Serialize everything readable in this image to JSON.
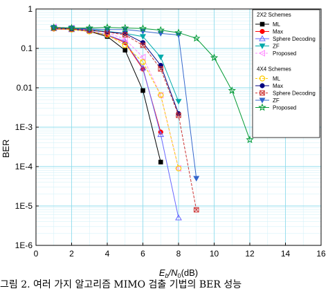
{
  "caption": "그림 2. 여러 가지 알고리즘 MIMO 검출 기법의 BER 성능",
  "chart_data": {
    "type": "line",
    "xlabel": "Eb/N0(dB)",
    "ylabel": "BER",
    "xlim": [
      0,
      16
    ],
    "ylim": [
      1e-06,
      1
    ],
    "yscale": "log",
    "grid": true,
    "legend_position": "top-right",
    "xticks": [
      "0",
      "2",
      "4",
      "6",
      "8",
      "10",
      "12",
      "14",
      "16"
    ],
    "yticks": [
      "1",
      "0.1",
      "0.01",
      "1E-3",
      "1E-4",
      "1E-5",
      "1E-6"
    ],
    "groups": [
      {
        "title": "2X2 Schemes",
        "series": [
          "ML",
          "Max",
          "Sphere Decoding",
          "ZF",
          "Proposed"
        ]
      },
      {
        "title": "4X4 Schemes",
        "series": [
          "ML",
          "Max",
          "Sphere Decoding",
          "ZF",
          "Proposed"
        ]
      }
    ],
    "series": [
      {
        "name": "ML",
        "group": "2X2 Schemes",
        "color": "#000000",
        "dash": "solid",
        "marker": "square",
        "x": [
          1,
          2,
          3,
          4,
          5,
          6,
          7
        ],
        "y": [
          0.32,
          0.3,
          0.27,
          0.2,
          0.09,
          0.0085,
          0.00013
        ]
      },
      {
        "name": "Max",
        "group": "2X2 Schemes",
        "color": "#ff0000",
        "dash": "solid",
        "marker": "circle",
        "x": [
          1,
          2,
          3,
          4,
          5,
          6,
          7
        ],
        "y": [
          0.31,
          0.3,
          0.27,
          0.22,
          0.14,
          0.03,
          0.00075
        ]
      },
      {
        "name": "Sphere Decoding",
        "group": "2X2 Schemes",
        "color": "#6666ff",
        "dash": "solid",
        "marker": "triangle-up",
        "x": [
          1,
          2,
          3,
          4,
          5,
          6,
          7,
          8
        ],
        "y": [
          0.32,
          0.3,
          0.28,
          0.22,
          0.15,
          0.032,
          0.00065,
          5e-06
        ]
      },
      {
        "name": "ZF",
        "group": "2X2 Schemes",
        "color": "#00aaaa",
        "dash": "solid",
        "marker": "triangle-down",
        "x": [
          1,
          2,
          3,
          4,
          5,
          6,
          7,
          8
        ],
        "y": [
          0.34,
          0.32,
          0.3,
          0.27,
          0.24,
          0.2,
          0.06,
          0.0045
        ]
      },
      {
        "name": "Proposed",
        "group": "2X2 Schemes",
        "color": "#ff88ff",
        "dash": "dash",
        "marker": "triangle-left",
        "x": [
          1,
          2,
          3,
          4,
          5,
          6,
          7,
          8
        ],
        "y": [
          0.35,
          0.33,
          0.3,
          0.25,
          0.17,
          0.06,
          0.0065,
          9e-05
        ]
      },
      {
        "name": "ML",
        "group": "4X4 Schemes",
        "color": "#ffcc00",
        "dash": "dash",
        "marker": "circle-open",
        "x": [
          1,
          2,
          3,
          4,
          5,
          6,
          7,
          8
        ],
        "y": [
          0.32,
          0.3,
          0.27,
          0.22,
          0.12,
          0.045,
          0.0065,
          9e-05
        ]
      },
      {
        "name": "Max",
        "group": "4X4 Schemes",
        "color": "#000080",
        "dash": "solid",
        "marker": "circle",
        "x": [
          1,
          2,
          3,
          4,
          5,
          6,
          7,
          8
        ],
        "y": [
          0.33,
          0.31,
          0.29,
          0.26,
          0.24,
          0.14,
          0.037,
          0.0022
        ]
      },
      {
        "name": "Sphere Decoding",
        "group": "4X4 Schemes",
        "color": "#cc3333",
        "dash": "dash",
        "marker": "cross-square",
        "x": [
          1,
          2,
          3,
          4,
          5,
          6,
          7,
          8,
          9
        ],
        "y": [
          0.33,
          0.31,
          0.29,
          0.26,
          0.22,
          0.12,
          0.03,
          0.002,
          8e-06
        ]
      },
      {
        "name": "ZF",
        "group": "4X4 Schemes",
        "color": "#3366cc",
        "dash": "solid",
        "marker": "triangle-down",
        "x": [
          1,
          2,
          3,
          4,
          5,
          6,
          7,
          8,
          9
        ],
        "y": [
          0.34,
          0.33,
          0.31,
          0.3,
          0.3,
          0.27,
          0.24,
          0.22,
          5e-05
        ]
      },
      {
        "name": "Proposed",
        "group": "4X4 Schemes",
        "color": "#009933",
        "dash": "solid",
        "marker": "star",
        "x": [
          1,
          2,
          3,
          4,
          5,
          6,
          7,
          8,
          9,
          10,
          11,
          12
        ],
        "y": [
          0.34,
          0.33,
          0.33,
          0.34,
          0.33,
          0.32,
          0.29,
          0.25,
          0.18,
          0.058,
          0.0085,
          0.00048
        ]
      }
    ]
  }
}
